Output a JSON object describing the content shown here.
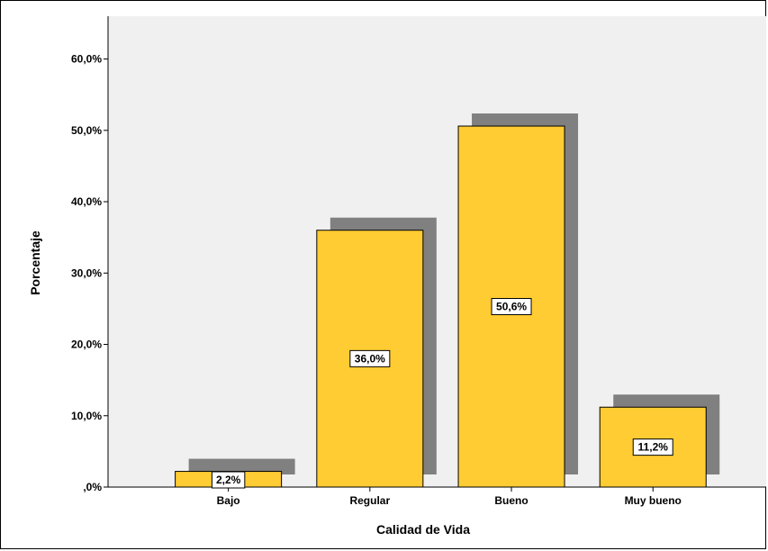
{
  "chart_data": {
    "type": "bar",
    "title": "",
    "xlabel": "Calidad de Vida",
    "ylabel": "Porcentaje",
    "categories": [
      "Bajo",
      "Regular",
      "Bueno",
      "Muy bueno"
    ],
    "values": [
      2.2,
      36.0,
      50.6,
      11.2
    ],
    "data_labels": [
      "2,2%",
      "36,0%",
      "50,6%",
      "11,2%"
    ],
    "ylim": [
      0,
      66
    ],
    "yticks": [
      0,
      10,
      20,
      30,
      40,
      50,
      60
    ],
    "ytick_labels": [
      ",0%",
      "10,0%",
      "20,0%",
      "30,0%",
      "40,0%",
      "50,0%",
      "60,0%"
    ],
    "grid": false,
    "legend": "none",
    "colors": {
      "bar": "#FFCC33",
      "shadow": "#808080",
      "plot_background": "#F0F0F0"
    }
  }
}
